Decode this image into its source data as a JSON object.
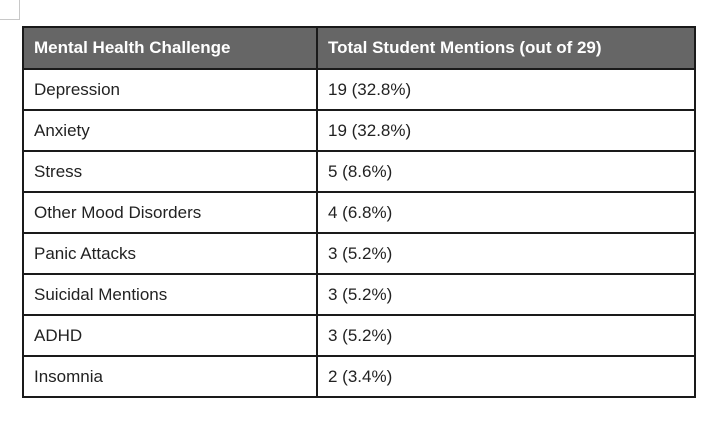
{
  "table": {
    "headers": [
      "Mental Health Challenge",
      "Total Student Mentions (out of 29)"
    ],
    "rows": [
      [
        "Depression",
        "19 (32.8%)"
      ],
      [
        "Anxiety",
        "19 (32.8%)"
      ],
      [
        "Stress",
        "5 (8.6%)"
      ],
      [
        "Other Mood Disorders",
        "4 (6.8%)"
      ],
      [
        "Panic Attacks",
        "3 (5.2%)"
      ],
      [
        "Suicidal Mentions",
        "3 (5.2%)"
      ],
      [
        "ADHD",
        "3 (5.2%)"
      ],
      [
        "Insomnia",
        "2 (3.4%)"
      ]
    ]
  },
  "colors": {
    "header_bg": "#666666",
    "header_text": "#ffffff",
    "border": "#1a1a1a"
  }
}
